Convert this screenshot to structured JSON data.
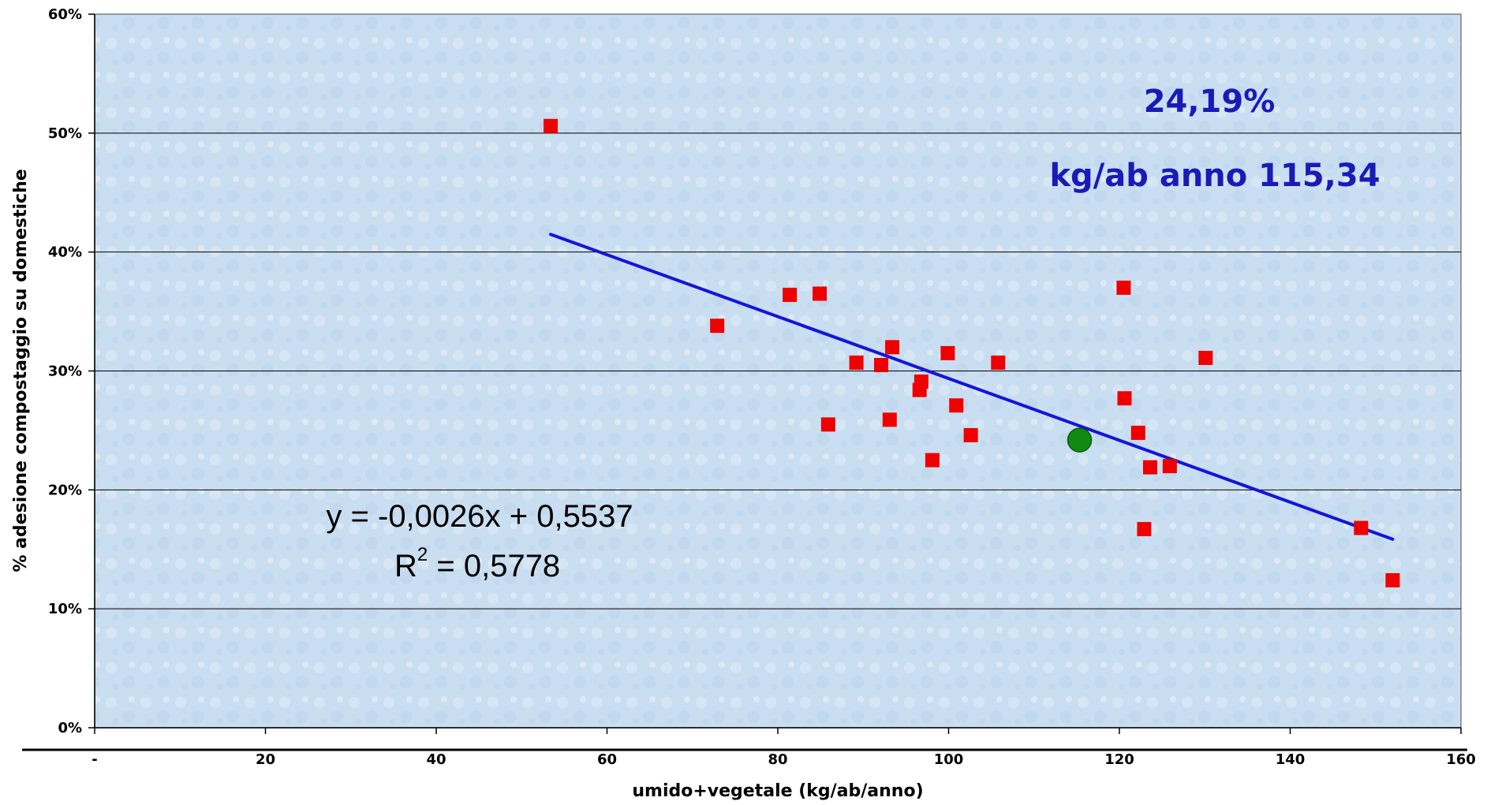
{
  "chart_data": {
    "type": "scatter",
    "xlabel": "umido+vegetale (kg/ab/anno)",
    "ylabel": "% adesione compostaggio su domestiche",
    "xlim": [
      0,
      160
    ],
    "ylim": [
      0,
      0.6
    ],
    "x_ticks": [
      {
        "value": 0,
        "label": "-"
      },
      {
        "value": 20,
        "label": "20"
      },
      {
        "value": 40,
        "label": "40"
      },
      {
        "value": 60,
        "label": "60"
      },
      {
        "value": 80,
        "label": "80"
      },
      {
        "value": 100,
        "label": "100"
      },
      {
        "value": 120,
        "label": "120"
      },
      {
        "value": 140,
        "label": "140"
      },
      {
        "value": 160,
        "label": "160"
      }
    ],
    "y_ticks": [
      {
        "value": 0,
        "label": "0%"
      },
      {
        "value": 0.1,
        "label": "10%"
      },
      {
        "value": 0.2,
        "label": "20%"
      },
      {
        "value": 0.3,
        "label": "30%"
      },
      {
        "value": 0.4,
        "label": "40%"
      },
      {
        "value": 0.5,
        "label": "50%"
      },
      {
        "value": 0.6,
        "label": "60%"
      }
    ],
    "grid": "horizontal",
    "series": [
      {
        "marker": "square",
        "color": "#ee0000",
        "points": [
          {
            "x": 53.4,
            "y": 0.506
          },
          {
            "x": 72.9,
            "y": 0.338
          },
          {
            "x": 81.4,
            "y": 0.364
          },
          {
            "x": 84.9,
            "y": 0.365
          },
          {
            "x": 85.9,
            "y": 0.255
          },
          {
            "x": 89.2,
            "y": 0.307
          },
          {
            "x": 92.1,
            "y": 0.305
          },
          {
            "x": 93.1,
            "y": 0.259
          },
          {
            "x": 93.4,
            "y": 0.32
          },
          {
            "x": 96.6,
            "y": 0.284
          },
          {
            "x": 96.8,
            "y": 0.291
          },
          {
            "x": 98.1,
            "y": 0.225
          },
          {
            "x": 99.9,
            "y": 0.315
          },
          {
            "x": 100.9,
            "y": 0.271
          },
          {
            "x": 102.6,
            "y": 0.246
          },
          {
            "x": 105.8,
            "y": 0.307
          },
          {
            "x": 120.5,
            "y": 0.37
          },
          {
            "x": 120.6,
            "y": 0.277
          },
          {
            "x": 122.2,
            "y": 0.248
          },
          {
            "x": 122.9,
            "y": 0.167
          },
          {
            "x": 123.6,
            "y": 0.219
          },
          {
            "x": 125.9,
            "y": 0.22
          },
          {
            "x": 130.1,
            "y": 0.311
          },
          {
            "x": 148.3,
            "y": 0.168
          },
          {
            "x": 152.0,
            "y": 0.124
          }
        ]
      },
      {
        "marker": "circle",
        "color": "#128a12",
        "points": [
          {
            "x": 115.34,
            "y": 0.2419
          }
        ]
      }
    ],
    "trendline": {
      "slope": -0.0026,
      "intercept": 0.5537,
      "x_start": 53.4,
      "x_end": 152.0,
      "color": "#1414dc"
    },
    "annotations": {
      "highlight_percent": "24,19%",
      "highlight_kg": "kg/ab anno 115,34",
      "equation": "y = -0,0026x + 0,5537",
      "r2_prefix": "R",
      "r2_sup": "2",
      "r2_value": " = 0,5778"
    },
    "colors": {
      "plot_background": "#c9def0",
      "gridline": "#000000",
      "annotation_text": "#1a1ab8"
    }
  }
}
